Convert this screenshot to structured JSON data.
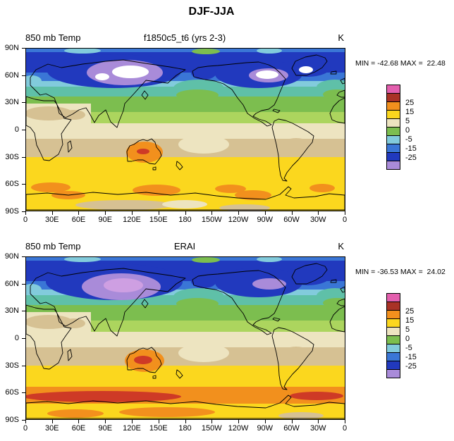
{
  "title": "DJF-JJA",
  "panels": [
    {
      "var_label": "850 mb Temp",
      "title": "f1850c5_t6 (yrs 2-3)",
      "units": "K",
      "stats": "MIN = -42.68 MAX =  22.48"
    },
    {
      "var_label": "850 mb Temp",
      "title": "ERAI",
      "units": "K",
      "stats": "MIN = -36.53 MAX =  24.02"
    }
  ],
  "axes": {
    "lat_labels": [
      "90N",
      "60N",
      "30N",
      "0",
      "30S",
      "60S",
      "90S"
    ],
    "lon_labels": [
      "0",
      "30E",
      "60E",
      "90E",
      "120E",
      "150E",
      "180",
      "150W",
      "120W",
      "90W",
      "60W",
      "30W",
      "0"
    ]
  },
  "colorbar": {
    "colors": [
      "#E35FAE",
      "#A93226",
      "#F2901D",
      "#FBD71E",
      "#EDE4C0",
      "#7CBE4F",
      "#82CBDC",
      "#3A76D6",
      "#2139BE",
      "#A98BD9"
    ],
    "labels": [
      "25",
      "15",
      "5",
      "0",
      "-5",
      "-15",
      "-25"
    ]
  },
  "chart_data": {
    "type": "heatmap",
    "title": "DJF-JJA",
    "variable": "850 mb Temp",
    "units": "K",
    "x_axis": {
      "tick_labels": [
        "0",
        "30E",
        "60E",
        "90E",
        "120E",
        "150E",
        "180",
        "150W",
        "120W",
        "90W",
        "60W",
        "30W",
        "0"
      ],
      "range_deg": [
        0,
        360
      ]
    },
    "y_axis": {
      "tick_labels": [
        "90N",
        "60N",
        "30N",
        "0",
        "30S",
        "60S",
        "90S"
      ],
      "range_deg": [
        -90,
        90
      ]
    },
    "colorbar_labels": [
      25,
      15,
      5,
      0,
      -5,
      -15,
      -25
    ],
    "palette_top_to_bottom": [
      "#E35FAE",
      "#A93226",
      "#F2901D",
      "#FBD71E",
      "#EDE4C0",
      "#7CBE4F",
      "#82CBDC",
      "#3A76D6",
      "#2139BE",
      "#A98BD9"
    ],
    "panels": [
      {
        "name": "f1850c5_t6 (yrs 2-3)",
        "min": -42.68,
        "max": 22.48,
        "pattern": "Northern Hemisphere strongly negative (dark blue; purple and white cores < -30 K over eastern Siberia and northern Canada/Greenland); near-zero cream band in tropics; Southern Hemisphere positive yellow band with orange patches near 60S, orange/red over Australia"
      },
      {
        "name": "ERAI",
        "min": -36.53,
        "max": 24.02,
        "pattern": "Similar pattern; violet/pink core over Mongolia-Siberia and purple over NE Canada; stronger orange-red belt around 60S near Antarctica and stronger orange/red over Australia"
      }
    ]
  }
}
